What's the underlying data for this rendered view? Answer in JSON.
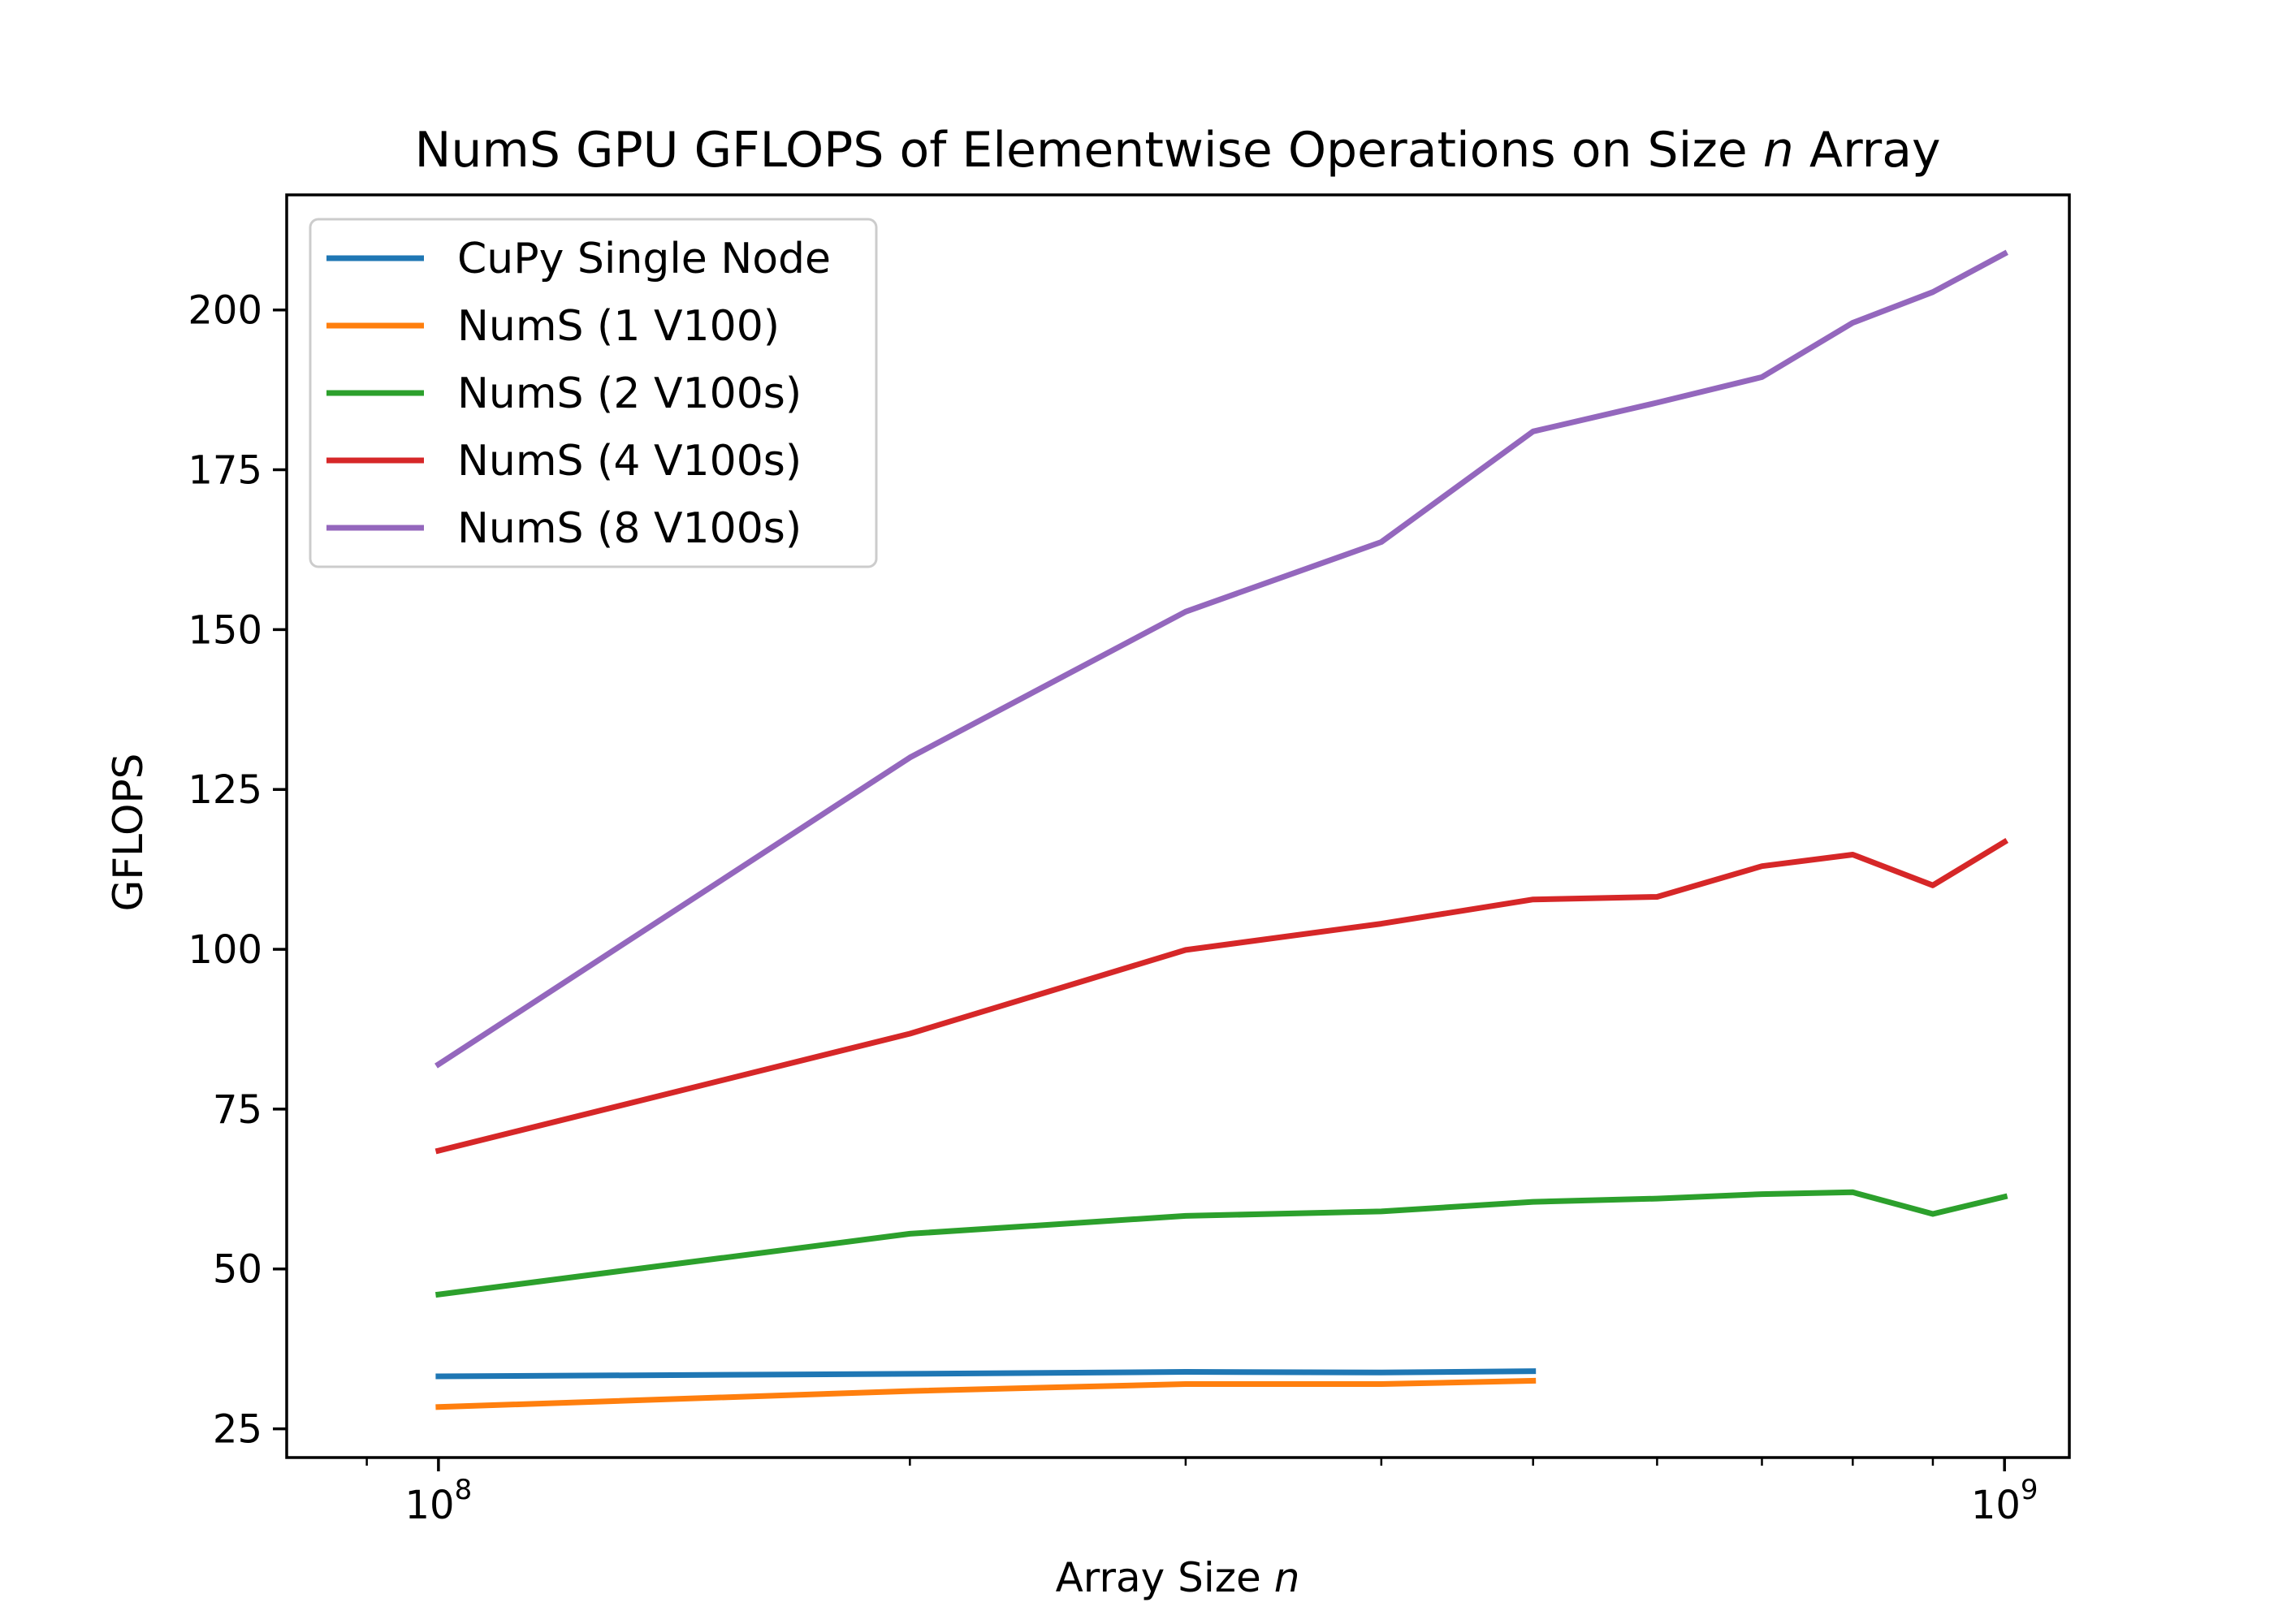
{
  "chart_data": {
    "type": "line",
    "title": "NumS GPU GFLOPS of Elementwise Operations on Size n Array",
    "title_parts": {
      "before": "NumS GPU GFLOPS of Elementwise Operations on Size ",
      "italic": "n",
      "after": " Array"
    },
    "xlabel": "Array Size n",
    "xlabel_parts": {
      "before": "Array Size ",
      "italic": "n"
    },
    "ylabel": "GFLOPS",
    "xscale": "log",
    "xlim": [
      80000000,
      1100000000
    ],
    "ylim": [
      20.5,
      218
    ],
    "yticks": [
      25,
      50,
      75,
      100,
      125,
      150,
      175,
      200
    ],
    "xticks_major": [
      {
        "value": 100000000,
        "base": "10",
        "exp": "8"
      },
      {
        "value": 1000000000,
        "base": "10",
        "exp": "9"
      }
    ],
    "xticks_minor": [
      200000000,
      300000000,
      400000000,
      500000000,
      600000000,
      700000000,
      800000000,
      900000000
    ],
    "grid": false,
    "legend_position": "upper-left",
    "series": [
      {
        "name": "CuPy Single Node",
        "color": "#1f77b4",
        "x": [
          100000000,
          200000000,
          300000000,
          400000000,
          500000000
        ],
        "y": [
          33.2,
          33.6,
          33.9,
          33.8,
          34.0
        ]
      },
      {
        "name": "NumS (1 V100)",
        "color": "#ff7f0e",
        "x": [
          100000000,
          200000000,
          300000000,
          400000000,
          500000000
        ],
        "y": [
          28.4,
          30.9,
          32.0,
          32.0,
          32.5
        ]
      },
      {
        "name": "NumS (2 V100s)",
        "color": "#2ca02c",
        "x": [
          100000000,
          200000000,
          300000000,
          400000000,
          500000000,
          600000000,
          700000000,
          800000000,
          900000000,
          1000000000
        ],
        "y": [
          46.0,
          55.5,
          58.3,
          59.0,
          60.5,
          61.0,
          61.7,
          62.0,
          58.6,
          61.3
        ]
      },
      {
        "name": "NumS (4 V100s)",
        "color": "#d62728",
        "x": [
          100000000,
          200000000,
          300000000,
          400000000,
          500000000,
          600000000,
          700000000,
          800000000,
          900000000,
          1000000000
        ],
        "y": [
          68.5,
          86.8,
          99.9,
          104.0,
          107.8,
          108.2,
          113.0,
          114.8,
          110.0,
          116.8
        ]
      },
      {
        "name": "NumS (8 V100s)",
        "color": "#9467bd",
        "x": [
          100000000,
          200000000,
          300000000,
          400000000,
          500000000,
          600000000,
          700000000,
          800000000,
          900000000,
          1000000000
        ],
        "y": [
          82.0,
          130.0,
          152.8,
          163.7,
          181.0,
          185.5,
          189.5,
          198.0,
          202.8,
          208.8
        ]
      }
    ]
  }
}
